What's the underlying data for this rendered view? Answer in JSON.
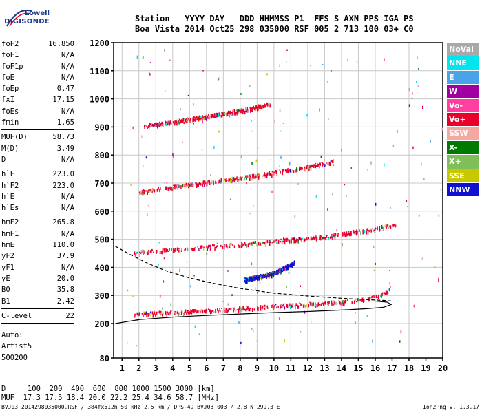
{
  "logo": {
    "line1": "Lowell",
    "line2": "DIGISONDE",
    "colors": {
      "brand": "#1a3a8a"
    }
  },
  "header": {
    "line1": "Station   YYYY DAY   DDD HHMMSS P1  FFS S AXN PPS IGA PS",
    "line2": "Boa Vista 2014 Oct25 298 035000 RSF 005 2 713 100 03+ C0"
  },
  "params": [
    {
      "name": "foF2",
      "value": "16.850"
    },
    {
      "name": "foF1",
      "value": "N/A"
    },
    {
      "name": "foF1p",
      "value": "N/A"
    },
    {
      "name": "foE",
      "value": "N/A"
    },
    {
      "name": "foEp",
      "value": "0.47"
    },
    {
      "name": "fxI",
      "value": "17.15"
    },
    {
      "name": "foEs",
      "value": "N/A"
    },
    {
      "name": "fmin",
      "value": "1.65",
      "sep": true
    },
    {
      "name": "MUF(D)",
      "value": "58.73"
    },
    {
      "name": "M(D)",
      "value": "3.49"
    },
    {
      "name": "D",
      "value": "N/A",
      "sep": true
    },
    {
      "name": "h`F",
      "value": "223.0"
    },
    {
      "name": "h`F2",
      "value": "223.0"
    },
    {
      "name": "h`E",
      "value": "N/A"
    },
    {
      "name": "h`Es",
      "value": "N/A",
      "sep": true
    },
    {
      "name": "hmF2",
      "value": "265.8"
    },
    {
      "name": "hmF1",
      "value": "N/A"
    },
    {
      "name": "hmE",
      "value": "110.0"
    },
    {
      "name": "yF2",
      "value": "37.9"
    },
    {
      "name": "yF1",
      "value": "N/A"
    },
    {
      "name": "yE",
      "value": "20.0"
    },
    {
      "name": "B0",
      "value": "35.8"
    },
    {
      "name": "B1",
      "value": "2.42",
      "sep": true
    },
    {
      "name": "C-level",
      "value": "22",
      "sep": true
    }
  ],
  "auto": {
    "line1": "Auto:",
    "line2": "Artist5",
    "line3": "500200"
  },
  "bottom": {
    "d_row": "D     100  200  400  600  800 1000 1500 3000 [km]",
    "muf_row": "MUF  17.3 17.5 18.4 20.0 22.2 25.4 34.6 58.7 [MHz]"
  },
  "footer": {
    "left": "BVJ03_2014298035000.RSF / 384fx512h 50 kHz 2.5 km / DPS-4D BVJ03 003 / 2.8 N 299.3 E",
    "right": "Ion2Png v. 1.3.17"
  },
  "legend": [
    {
      "label": "NoVal",
      "color": "#a9a9a9"
    },
    {
      "label": "NNE",
      "color": "#00e5ee"
    },
    {
      "label": "E",
      "color": "#4aa3e8"
    },
    {
      "label": "W",
      "color": "#a000a0"
    },
    {
      "label": "Vo-",
      "color": "#ff40a0"
    },
    {
      "label": "Vo+",
      "color": "#e8002a"
    },
    {
      "label": "SSW",
      "color": "#f4a9a0"
    },
    {
      "label": "X-",
      "color": "#007a00"
    },
    {
      "label": "X+",
      "color": "#7fbf5a"
    },
    {
      "label": "SSE",
      "color": "#c8c800"
    },
    {
      "label": "NNW",
      "color": "#1010d0"
    }
  ],
  "chart_data": {
    "type": "scatter",
    "title": "",
    "xlabel": "",
    "ylabel": "",
    "xlim": [
      0.5,
      20
    ],
    "ylim": [
      80,
      1200
    ],
    "xticks": [
      1,
      2,
      3,
      4,
      5,
      6,
      7,
      8,
      9,
      10,
      11,
      12,
      13,
      14,
      15,
      16,
      17,
      18,
      19,
      20
    ],
    "yticks": [
      80,
      200,
      300,
      400,
      500,
      600,
      700,
      800,
      900,
      1000,
      1100,
      1200
    ],
    "grid": true,
    "traces": [
      {
        "name": "F-trace 1st hop",
        "color": "#e8002a",
        "x": [
          1.7,
          3,
          5,
          7,
          9,
          11,
          13,
          14.5,
          15.5,
          16.2,
          16.7,
          17.0
        ],
        "y": [
          235,
          240,
          245,
          252,
          260,
          268,
          275,
          282,
          290,
          300,
          315,
          340
        ]
      },
      {
        "name": "F-trace 2nd hop",
        "color": "#e8002a",
        "x": [
          1.7,
          4,
          6,
          8,
          10,
          12,
          14,
          15.5,
          17.2
        ],
        "y": [
          455,
          465,
          475,
          485,
          495,
          505,
          520,
          535,
          555
        ]
      },
      {
        "name": "F-trace 3rd hop",
        "color": "#e8002a",
        "x": [
          2.0,
          4,
          6,
          8,
          10,
          12,
          13.5
        ],
        "y": [
          670,
          690,
          705,
          720,
          740,
          760,
          780
        ]
      },
      {
        "name": "F-trace 4th hop",
        "color": "#e8002a",
        "x": [
          2.2,
          4,
          6,
          8,
          9.8
        ],
        "y": [
          905,
          920,
          940,
          960,
          985
        ]
      },
      {
        "name": "W oblique cluster",
        "color": "#1010d0",
        "x": [
          8.2,
          9,
          10,
          10.6,
          11.2
        ],
        "y": [
          358,
          368,
          382,
          400,
          420
        ]
      }
    ],
    "profile_lines": [
      {
        "name": "profile-solid",
        "style": "solid",
        "x": [
          0.6,
          2,
          4,
          6,
          8,
          10,
          12,
          14,
          15.5,
          16.5,
          16.95,
          16.7,
          16.0
        ],
        "y": [
          200,
          214,
          223,
          229,
          234,
          239,
          243,
          248,
          253,
          258,
          268,
          276,
          280
        ]
      },
      {
        "name": "profile-dashed",
        "style": "dashed",
        "x": [
          0.6,
          1.5,
          2.5,
          3.5,
          5,
          6.5,
          8,
          10,
          12,
          14,
          15.5,
          16.5,
          16.95
        ],
        "y": [
          475,
          445,
          415,
          390,
          362,
          342,
          325,
          308,
          298,
          290,
          285,
          282,
          280
        ]
      }
    ],
    "colors": {
      "axis": "#000000",
      "grid": "#c8c8c8"
    }
  }
}
